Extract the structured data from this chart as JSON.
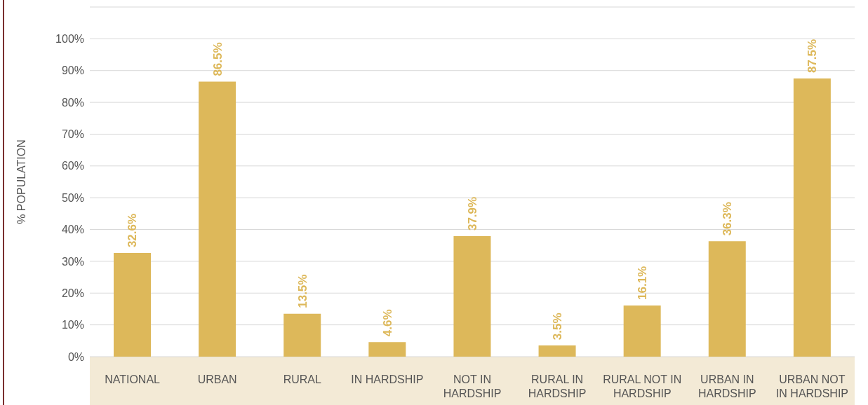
{
  "chart_data": {
    "type": "bar",
    "ylabel": "% POPULATION",
    "categories": [
      "NATIONAL",
      "URBAN",
      "RURAL",
      "IN HARDSHIP",
      "NOT IN\nHARDSHIP",
      "RURAL IN\nHARDSHIP",
      "RURAL NOT IN\nHARDSHIP",
      "URBAN IN\nHARDSHIP",
      "URBAN NOT\nIN HARDSHIP"
    ],
    "values": [
      32.6,
      86.5,
      13.5,
      4.6,
      37.9,
      3.5,
      16.1,
      36.3,
      87.5
    ],
    "value_labels": [
      "32.6%",
      "86.5%",
      "13.5%",
      "4.6%",
      "37.9%",
      "3.5%",
      "16.1%",
      "36.3%",
      "87.5%"
    ],
    "color": "#ddb85a",
    "ylim": [
      0,
      110
    ],
    "yticks": [
      {
        "value": 0,
        "label": "0%"
      },
      {
        "value": 10,
        "label": "10%"
      },
      {
        "value": 20,
        "label": "20%"
      },
      {
        "value": 30,
        "label": "30%"
      },
      {
        "value": 40,
        "label": "40%"
      },
      {
        "value": 50,
        "label": "50%"
      },
      {
        "value": 60,
        "label": "60%"
      },
      {
        "value": 70,
        "label": "70%"
      },
      {
        "value": 80,
        "label": "80%"
      },
      {
        "value": 90,
        "label": "90%"
      },
      {
        "value": 100,
        "label": "100%"
      },
      {
        "value": 110,
        "label": null
      }
    ],
    "grid": "y",
    "legend": false
  }
}
